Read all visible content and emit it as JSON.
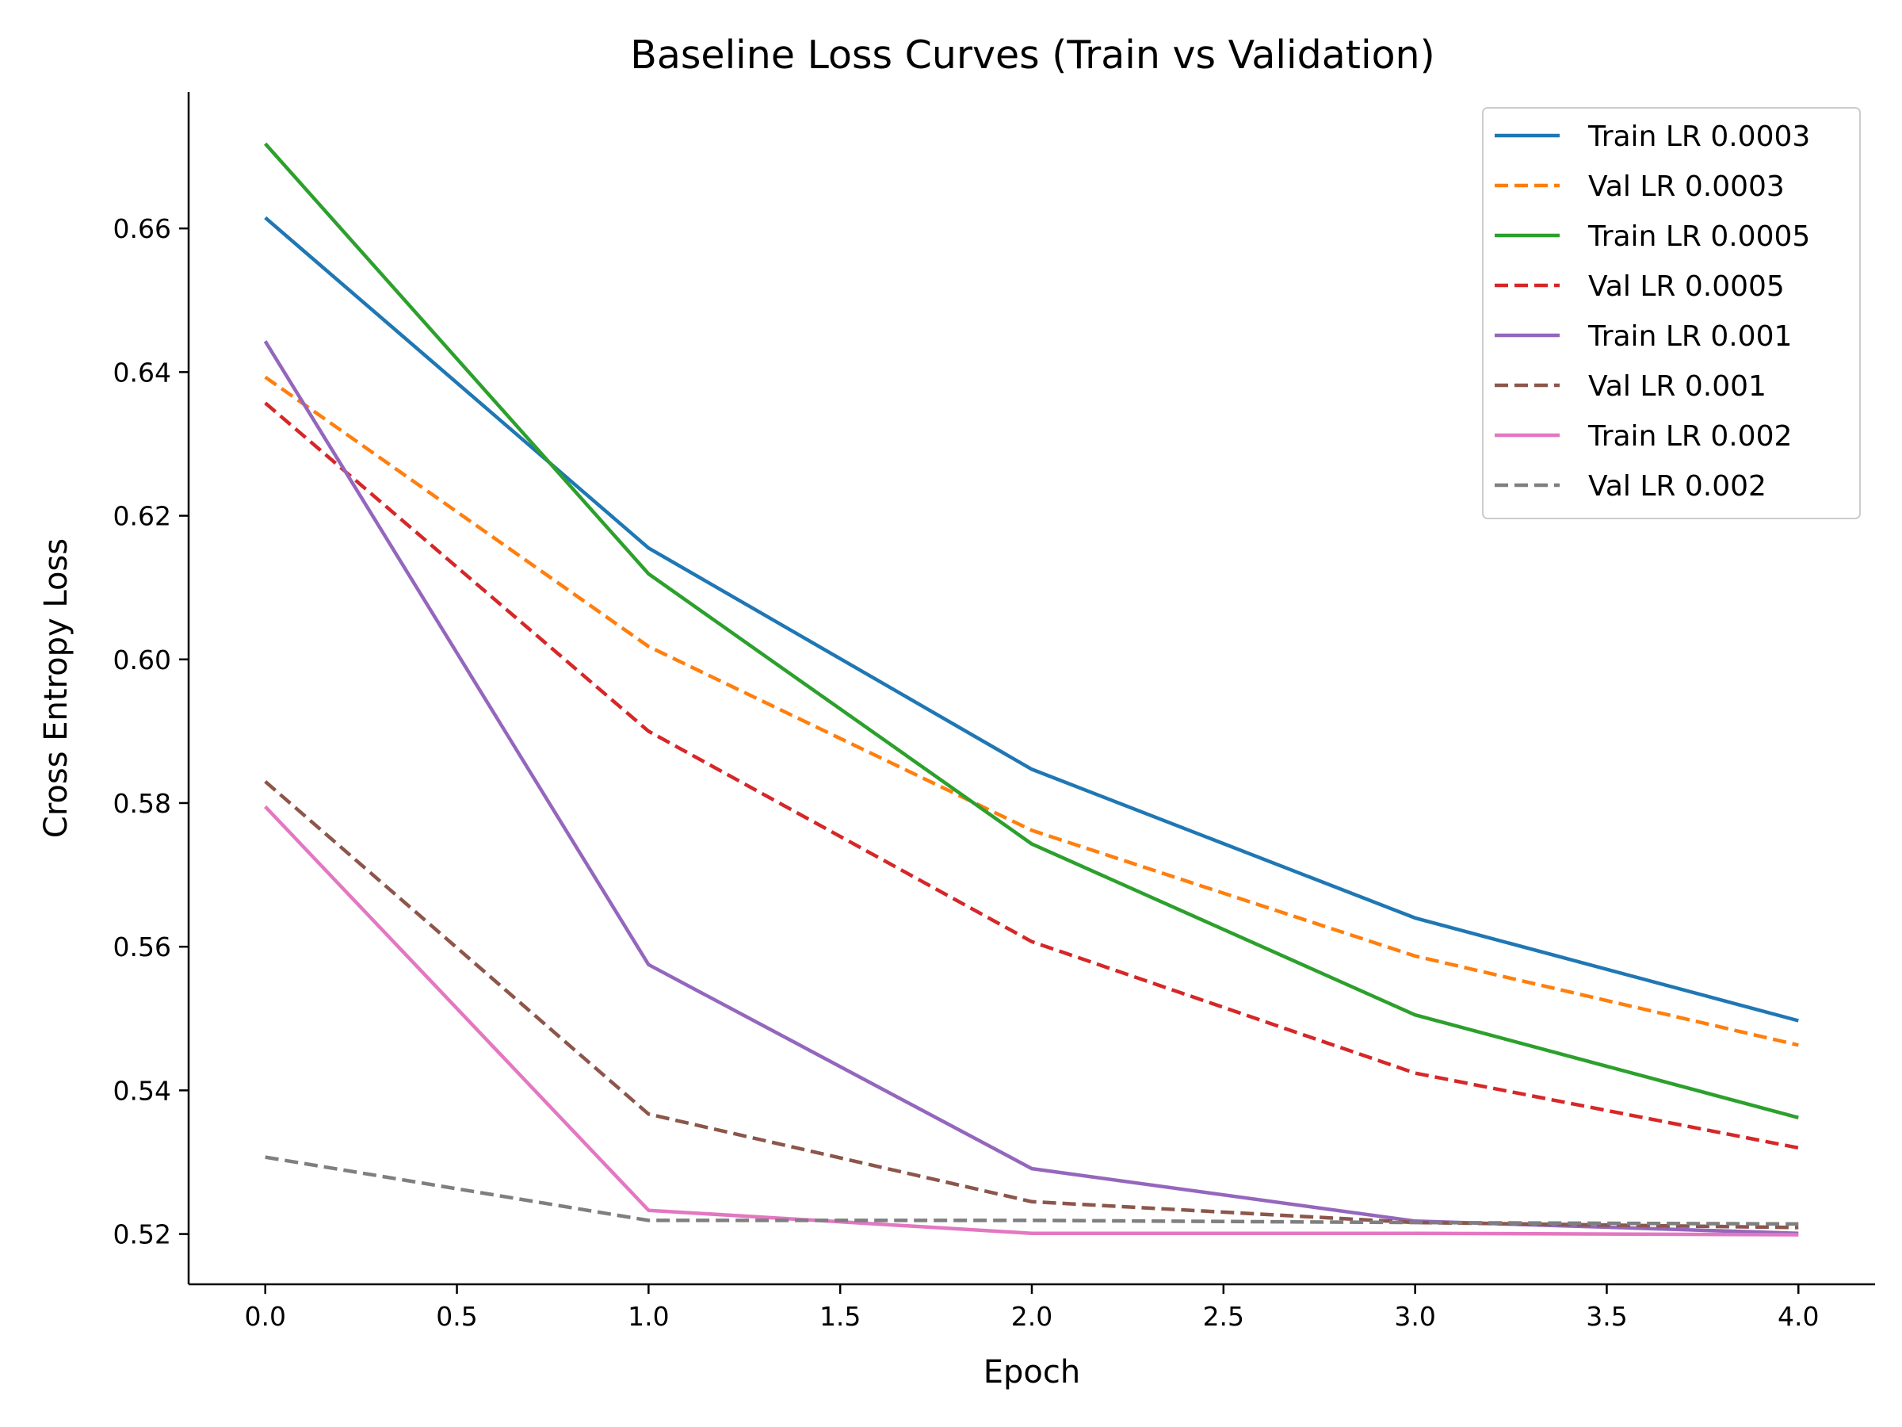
{
  "chart_data": {
    "type": "line",
    "title": "Baseline Loss Curves (Train vs Validation)",
    "xlabel": "Epoch",
    "ylabel": "Cross Entropy Loss",
    "x": [
      0,
      1,
      2,
      3,
      4
    ],
    "xlim": [
      -0.2,
      4.2
    ],
    "ylim": [
      0.513,
      0.679
    ],
    "xticks": [
      0.0,
      0.5,
      1.0,
      1.5,
      2.0,
      2.5,
      3.0,
      3.5,
      4.0
    ],
    "xtick_labels": [
      "0.0",
      "0.5",
      "1.0",
      "1.5",
      "2.0",
      "2.5",
      "3.0",
      "3.5",
      "4.0"
    ],
    "yticks": [
      0.52,
      0.54,
      0.56,
      0.58,
      0.6,
      0.62,
      0.64,
      0.66
    ],
    "ytick_labels": [
      "0.52",
      "0.54",
      "0.56",
      "0.58",
      "0.60",
      "0.62",
      "0.64",
      "0.66"
    ],
    "grid": false,
    "legend_position": "top-right",
    "series": [
      {
        "name": "Train LR 0.0003",
        "color": "#1f77b4",
        "dashed": false,
        "values": [
          0.6615,
          0.6155,
          0.5847,
          0.564,
          0.5497
        ]
      },
      {
        "name": "Val LR 0.0003",
        "color": "#ff7f0e",
        "dashed": true,
        "values": [
          0.6393,
          0.6018,
          0.5762,
          0.5587,
          0.5463
        ]
      },
      {
        "name": "Train LR 0.0005",
        "color": "#2ca02c",
        "dashed": false,
        "values": [
          0.6718,
          0.6119,
          0.5743,
          0.5505,
          0.5362
        ]
      },
      {
        "name": "Val LR 0.0005",
        "color": "#d62728",
        "dashed": true,
        "values": [
          0.6357,
          0.59,
          0.5607,
          0.5424,
          0.532
        ]
      },
      {
        "name": "Train LR 0.001",
        "color": "#9467bd",
        "dashed": false,
        "values": [
          0.6443,
          0.5575,
          0.5291,
          0.5218,
          0.5201
        ]
      },
      {
        "name": "Val LR 0.001",
        "color": "#8c564b",
        "dashed": true,
        "values": [
          0.583,
          0.5367,
          0.5245,
          0.5216,
          0.5209
        ]
      },
      {
        "name": "Train LR 0.002",
        "color": "#e377c2",
        "dashed": false,
        "values": [
          0.5795,
          0.5233,
          0.5201,
          0.5201,
          0.5199
        ]
      },
      {
        "name": "Val LR 0.002",
        "color": "#7f7f7f",
        "dashed": true,
        "values": [
          0.5307,
          0.5219,
          0.5219,
          0.5216,
          0.5214
        ]
      }
    ]
  }
}
